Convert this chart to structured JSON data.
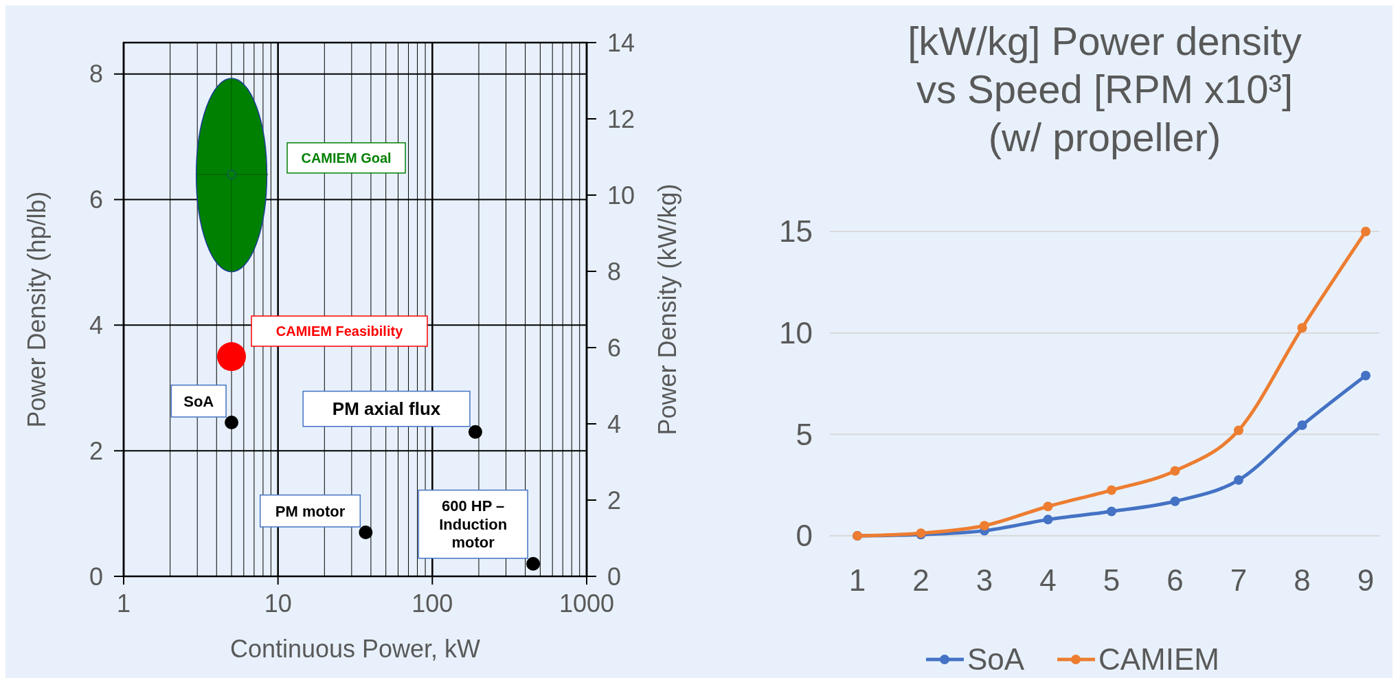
{
  "chart_data": [
    {
      "type": "scatter",
      "xlabel": "Continuous Power, kW",
      "ylabel": "Power Density (hp/lb)",
      "y2label": "Power Density  (kW/kg)",
      "log": "x",
      "xlim": [
        1,
        1000
      ],
      "xticks": [
        1,
        10,
        100,
        1000
      ],
      "ylim": [
        0,
        8.5
      ],
      "yticks": [
        0,
        2,
        4,
        6,
        8
      ],
      "y2lim": [
        0,
        14
      ],
      "y2ticks": [
        0,
        2,
        4,
        6,
        8,
        10,
        12,
        14
      ],
      "grid": true,
      "legend": false,
      "marker": "circle",
      "series": [
        {
          "name": "CAMIEM Goal",
          "color": "#008000",
          "x": [
            5
          ],
          "values": [
            6.4
          ],
          "errors": [
            [
              4.85,
              7.93
            ]
          ],
          "xerrors": [
            [
              3.0,
              8.6
            ]
          ]
        },
        {
          "name": "CAMIEM Feasibility",
          "color": "#ff0000",
          "x": [
            5
          ],
          "values": [
            3.5
          ]
        },
        {
          "color": "#000000",
          "x": [
            5,
            190,
            37,
            450
          ],
          "values": [
            2.45,
            2.3,
            0.7,
            0.2
          ]
        }
      ],
      "annotations": [
        {
          "text": "SoA",
          "x": 5,
          "y": 2.45
        },
        {
          "text": "PM axial flux",
          "x": 190,
          "y": 2.3
        },
        {
          "text": "PM motor",
          "x": 37,
          "y": 0.7
        },
        {
          "text": "600 HP – Induction motor",
          "x": 450,
          "y": 0.2
        }
      ]
    },
    {
      "type": "line",
      "title": "[kW/kg] Power density vs Speed [RPM x10³] (w/ propeller)",
      "categories": [
        "1",
        "2",
        "3",
        "4",
        "5",
        "6",
        "7",
        "8",
        "9"
      ],
      "ylim": [
        0,
        15
      ],
      "yticks": [
        0,
        5,
        10,
        15
      ],
      "grid": "y",
      "legend": "bottom",
      "marker": "circle",
      "series": [
        {
          "name": "SoA",
          "color": "#4472c4",
          "values": [
            0,
            0.06,
            0.25,
            0.8,
            1.2,
            1.7,
            2.75,
            5.45,
            7.9
          ]
        },
        {
          "name": "CAMIEM",
          "color": "#ed7d31",
          "values": [
            0,
            0.13,
            0.5,
            1.45,
            2.25,
            3.2,
            5.2,
            10.25,
            15
          ]
        }
      ]
    }
  ]
}
